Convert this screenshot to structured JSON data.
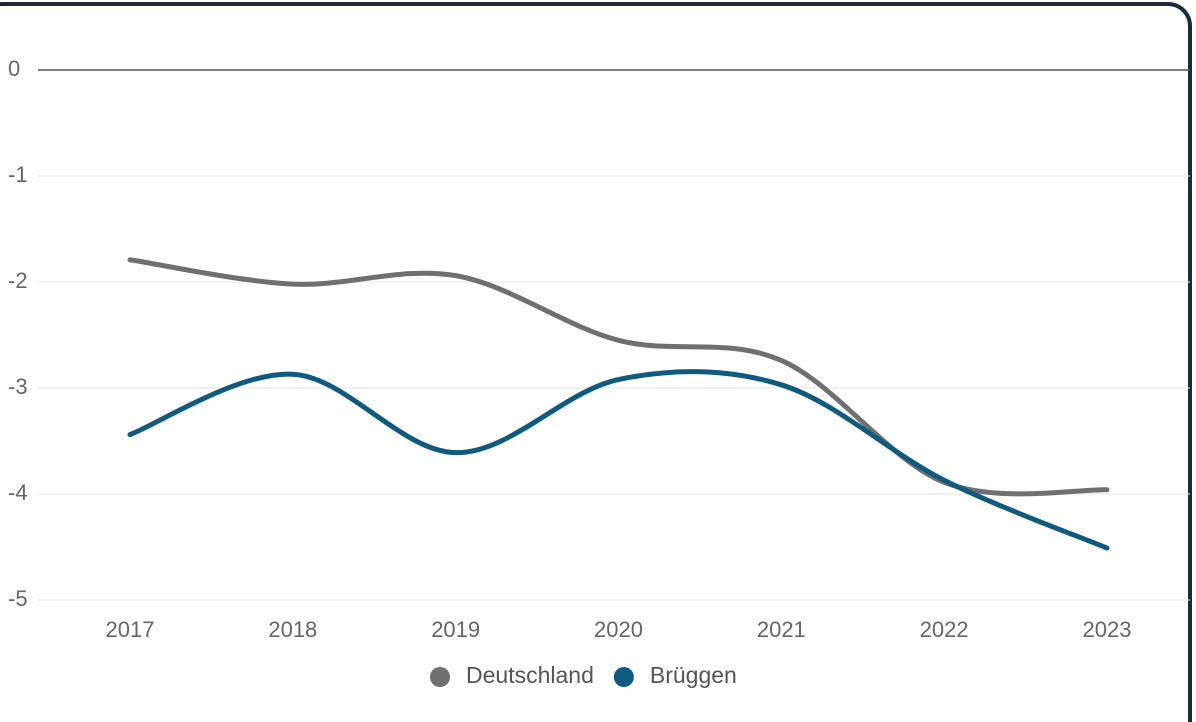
{
  "chart_data": {
    "type": "line",
    "categories": [
      "2017",
      "2018",
      "2019",
      "2020",
      "2021",
      "2022",
      "2023"
    ],
    "series": [
      {
        "name": "Deutschland",
        "color": "#707070",
        "values": [
          -1.79,
          -2.02,
          -1.94,
          -2.55,
          -2.74,
          -3.89,
          -3.96
        ]
      },
      {
        "name": "Brüggen",
        "color": "#0f5a7f",
        "values": [
          -3.44,
          -2.87,
          -3.61,
          -2.92,
          -2.97,
          -3.87,
          -4.51
        ]
      }
    ],
    "ylim": [
      -5,
      0
    ],
    "yticks": [
      0,
      -1,
      -2,
      -3,
      -4,
      -5
    ],
    "grid": true,
    "legend": "bottom"
  }
}
